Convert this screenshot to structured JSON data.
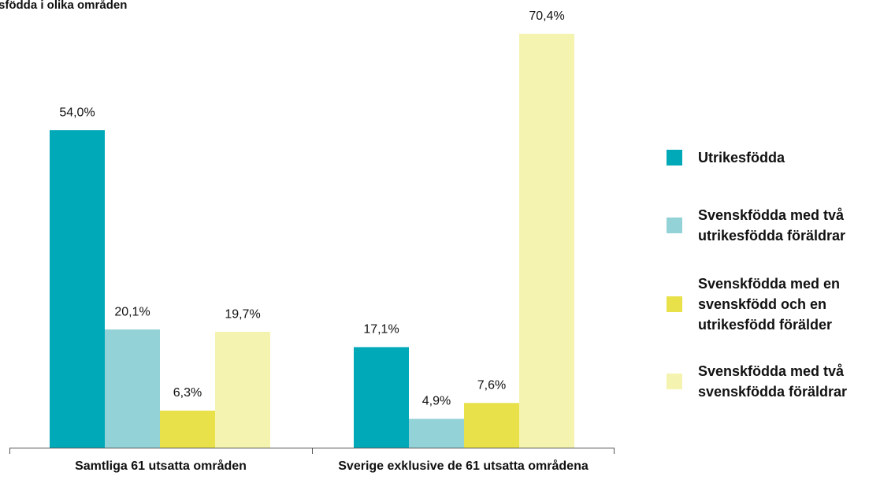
{
  "chart_data": {
    "type": "bar",
    "title": "sfödda i olika områden",
    "categories": [
      "Samtliga 61 utsatta områden",
      "Sverige exklusive de 61 utsatta områdena"
    ],
    "series": [
      {
        "name": "Utrikesfödda",
        "color": "#00a9b8",
        "values": [
          54.0,
          17.1
        ],
        "value_labels": [
          "54,0%",
          "17,1%"
        ]
      },
      {
        "name": "Svenskfödda med två utrikesfödda föräldrar",
        "color": "#93d2d6",
        "values": [
          20.1,
          4.9
        ],
        "value_labels": [
          "20,1%",
          "4,9%"
        ]
      },
      {
        "name": "Svenskfödda med en svenskfödd och en utrikesfödd förälder",
        "color": "#e8e14a",
        "values": [
          6.3,
          7.6
        ],
        "value_labels": [
          "6,3%",
          "7,6%"
        ]
      },
      {
        "name": "Svenskfödda med två svenskfödda föräldrar",
        "color": "#f5f3b0",
        "values": [
          19.7,
          70.4
        ],
        "value_labels": [
          "19,7%",
          "70,4%"
        ]
      }
    ],
    "legend": "right"
  }
}
